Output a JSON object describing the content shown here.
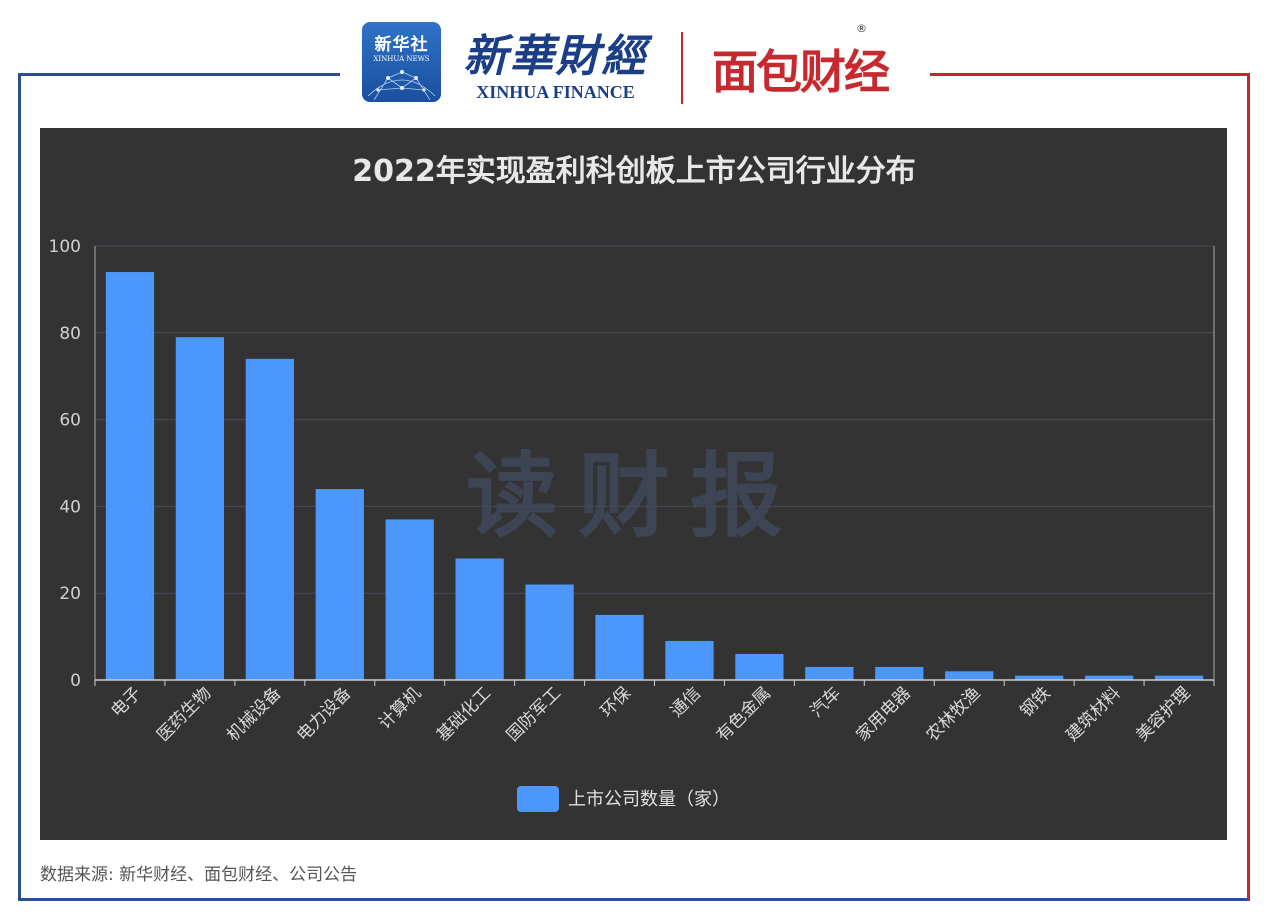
{
  "header": {
    "xinhua_badge_cn": "新华社",
    "xinhua_badge_en": "XINHUA NEWS",
    "xinhua_finance_cn": "新華財經",
    "xinhua_finance_en": "XINHUA FINANCE",
    "mianbao_logo": "面包财经",
    "registered_mark": "®"
  },
  "watermark": "读财报",
  "source_note": "数据来源: 新华财经、面包财经、公司公告",
  "colors": {
    "bar": "#4b97fb",
    "panel_bg": "#333333",
    "frame_left": "#2a4f8f",
    "frame_right": "#c0282e"
  },
  "chart_data": {
    "type": "bar",
    "title": "2022年实现盈利科创板上市公司行业分布",
    "xlabel": "",
    "ylabel": "",
    "ylim": [
      0,
      100
    ],
    "yticks": [
      0,
      20,
      40,
      60,
      80,
      100
    ],
    "grid": true,
    "legend_position": "bottom-center",
    "categories": [
      "电子",
      "医药生物",
      "机械设备",
      "电力设备",
      "计算机",
      "基础化工",
      "国防军工",
      "环保",
      "通信",
      "有色金属",
      "汽车",
      "家用电器",
      "农林牧渔",
      "钢铁",
      "建筑材料",
      "美容护理"
    ],
    "series": [
      {
        "name": "上市公司数量（家）",
        "values": [
          94,
          79,
          74,
          44,
          37,
          28,
          22,
          15,
          9,
          6,
          3,
          3,
          2,
          1,
          1,
          1
        ]
      }
    ]
  }
}
